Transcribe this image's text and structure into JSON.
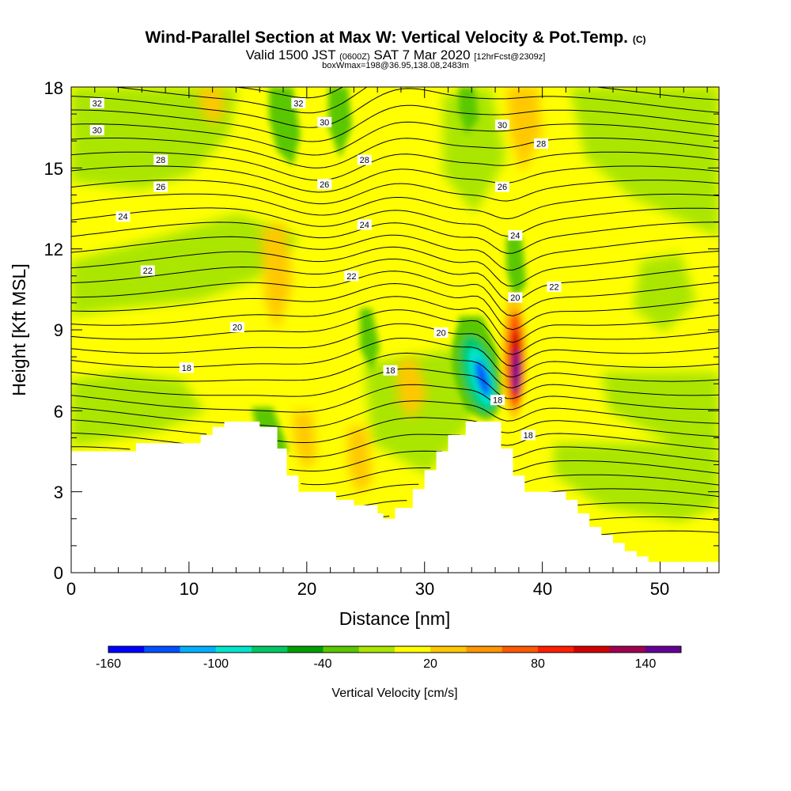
{
  "header": {
    "title": "Wind-Parallel Section at Max W: Vertical Velocity & Pot.Temp.",
    "copyright": "(C)",
    "valid_prefix": "Valid 1500 JST",
    "utc": "(0600Z)",
    "valid_date": "SAT 7 Mar 2020",
    "forecast": "[12hrFcst@2309z]",
    "box": "boxWmax=198@36.95,138.08,2483m"
  },
  "chart_data": {
    "type": "heatmap",
    "xlabel": "Distance [nm]",
    "ylabel": "Height [Kft MSL]",
    "xlim": [
      0,
      55
    ],
    "ylim": [
      0,
      18
    ],
    "x_ticks": [
      0,
      10,
      20,
      30,
      40,
      50
    ],
    "y_ticks": [
      0,
      3,
      6,
      9,
      12,
      15,
      18
    ],
    "colorbar": {
      "label": "Vertical Velocity [cm/s]",
      "range": [
        -160,
        160
      ],
      "tick_values": [
        -160,
        -100,
        -40,
        20,
        80,
        140
      ],
      "colors": [
        "#0000ff",
        "#0050ff",
        "#00b0ff",
        "#00e6cc",
        "#00c864",
        "#00a000",
        "#5ac800",
        "#aae600",
        "#ffff00",
        "#ffc800",
        "#ff9600",
        "#ff5a00",
        "#ff1e00",
        "#d20000",
        "#a00050",
        "#640096"
      ]
    },
    "terrain_kft": [
      [
        0,
        4.5
      ],
      [
        5.5,
        4.5
      ],
      [
        5.5,
        4.8
      ],
      [
        11,
        4.8
      ],
      [
        11,
        5.1
      ],
      [
        12,
        5.1
      ],
      [
        12,
        5.4
      ],
      [
        13,
        5.4
      ],
      [
        13,
        5.6
      ],
      [
        16,
        5.6
      ],
      [
        16,
        5.4
      ],
      [
        17.5,
        5.4
      ],
      [
        17.5,
        4.6
      ],
      [
        18.3,
        4.6
      ],
      [
        18.3,
        3.6
      ],
      [
        19.3,
        3.6
      ],
      [
        19.3,
        3.0
      ],
      [
        22.5,
        3.0
      ],
      [
        22.5,
        2.7
      ],
      [
        24,
        2.7
      ],
      [
        24,
        2.5
      ],
      [
        26,
        2.5
      ],
      [
        26,
        2.2
      ],
      [
        26.5,
        2.2
      ],
      [
        26.5,
        2.0
      ],
      [
        27.5,
        2.0
      ],
      [
        27.5,
        2.4
      ],
      [
        29,
        2.4
      ],
      [
        29,
        3.1
      ],
      [
        30,
        3.1
      ],
      [
        30,
        3.8
      ],
      [
        31,
        3.8
      ],
      [
        31,
        4.5
      ],
      [
        32,
        4.5
      ],
      [
        32,
        5.1
      ],
      [
        33.5,
        5.1
      ],
      [
        33.5,
        5.6
      ],
      [
        36.5,
        5.6
      ],
      [
        36.5,
        4.6
      ],
      [
        37.5,
        4.6
      ],
      [
        37.5,
        3.6
      ],
      [
        38.5,
        3.6
      ],
      [
        38.5,
        3.0
      ],
      [
        42,
        3.0
      ],
      [
        42,
        2.7
      ],
      [
        43,
        2.7
      ],
      [
        43,
        2.2
      ],
      [
        44,
        2.2
      ],
      [
        44,
        1.7
      ],
      [
        45,
        1.7
      ],
      [
        45,
        1.4
      ],
      [
        46,
        1.4
      ],
      [
        46,
        1.1
      ],
      [
        47,
        1.1
      ],
      [
        47,
        0.8
      ],
      [
        48,
        0.8
      ],
      [
        48,
        0.6
      ],
      [
        49,
        0.6
      ],
      [
        49,
        0.4
      ],
      [
        55,
        0.4
      ]
    ],
    "theta_contour_labels": [
      {
        "text": "32",
        "x": 2.2,
        "y": 17.4
      },
      {
        "text": "32",
        "x": 19.3,
        "y": 17.4
      },
      {
        "text": "30",
        "x": 2.2,
        "y": 16.4
      },
      {
        "text": "30",
        "x": 21.5,
        "y": 16.7
      },
      {
        "text": "30",
        "x": 36.6,
        "y": 16.6
      },
      {
        "text": "28",
        "x": 7.6,
        "y": 15.3
      },
      {
        "text": "28",
        "x": 24.9,
        "y": 15.3
      },
      {
        "text": "28",
        "x": 39.9,
        "y": 15.9
      },
      {
        "text": "26",
        "x": 7.6,
        "y": 14.3
      },
      {
        "text": "26",
        "x": 21.5,
        "y": 14.4
      },
      {
        "text": "26",
        "x": 36.6,
        "y": 14.3
      },
      {
        "text": "24",
        "x": 4.4,
        "y": 13.2
      },
      {
        "text": "24",
        "x": 24.9,
        "y": 12.9
      },
      {
        "text": "24",
        "x": 37.7,
        "y": 12.5
      },
      {
        "text": "22",
        "x": 6.5,
        "y": 11.2
      },
      {
        "text": "22",
        "x": 23.8,
        "y": 11.0
      },
      {
        "text": "22",
        "x": 41.0,
        "y": 10.6
      },
      {
        "text": "20",
        "x": 14.1,
        "y": 9.1
      },
      {
        "text": "20",
        "x": 31.4,
        "y": 8.9
      },
      {
        "text": "20",
        "x": 37.7,
        "y": 10.2
      },
      {
        "text": "18",
        "x": 9.8,
        "y": 7.6
      },
      {
        "text": "18",
        "x": 27.1,
        "y": 7.5
      },
      {
        "text": "18",
        "x": 36.2,
        "y": 6.4
      },
      {
        "text": "18",
        "x": 38.8,
        "y": 5.1
      }
    ]
  }
}
